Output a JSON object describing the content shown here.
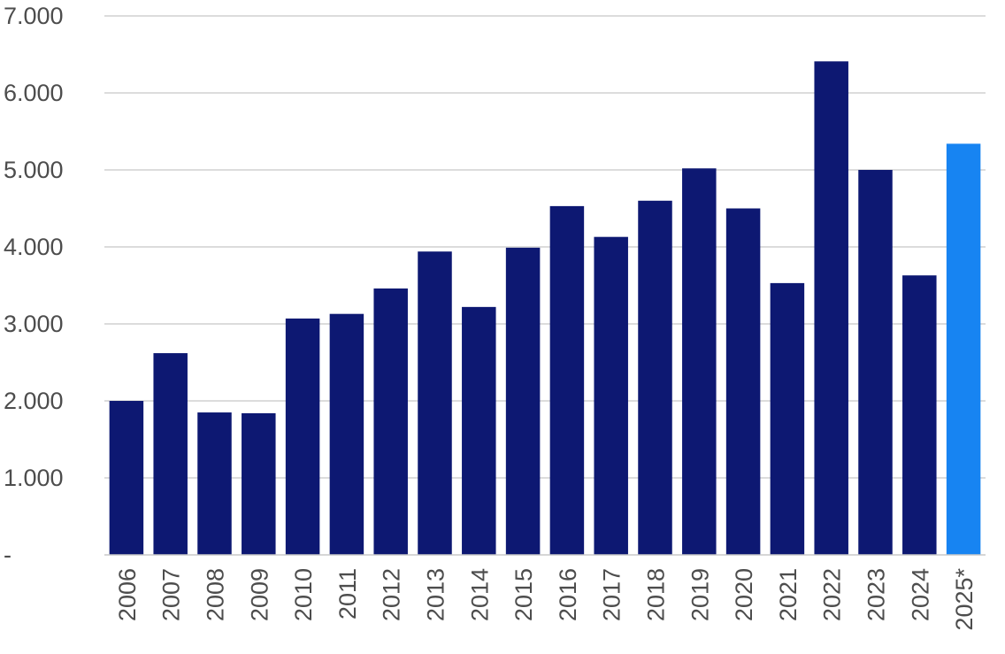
{
  "chart_data": {
    "type": "bar",
    "title": "",
    "xlabel": "",
    "ylabel": "",
    "categories": [
      "2006",
      "2007",
      "2008",
      "2009",
      "2010",
      "2011",
      "2012",
      "2013",
      "2014",
      "2015",
      "2016",
      "2017",
      "2018",
      "2019",
      "2020",
      "2021",
      "2022",
      "2023",
      "2024",
      "2025*"
    ],
    "values": [
      2000,
      2620,
      1850,
      1840,
      3070,
      3130,
      3460,
      3940,
      3220,
      3990,
      4530,
      4130,
      4600,
      5020,
      4500,
      3530,
      6410,
      5000,
      3630,
      5340
    ],
    "ylim": [
      0,
      7000
    ],
    "yticks": [
      0,
      1000,
      2000,
      3000,
      4000,
      5000,
      6000,
      7000
    ],
    "ytick_labels": [
      "-",
      "1.000",
      "2.000",
      "3.000",
      "4.000",
      "5.000",
      "6.000",
      "7.000"
    ],
    "grid": true,
    "colors": {
      "bar": "#0d1872",
      "highlight_bar": "#1784f2",
      "highlight_category": "2025*"
    }
  }
}
